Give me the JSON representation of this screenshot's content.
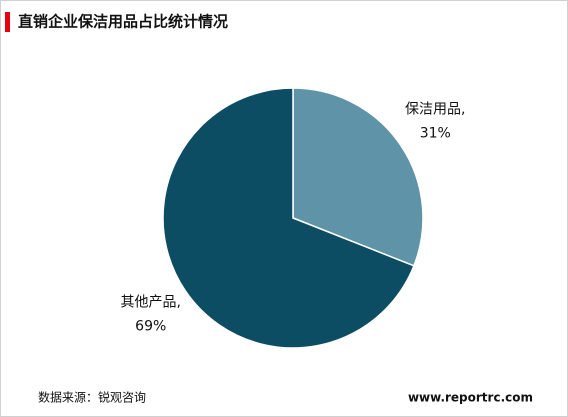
{
  "chart_data": {
    "type": "pie",
    "title": "直销企业保洁用品占比统计情况",
    "categories": [
      "保洁用品,",
      "其他产品,"
    ],
    "values": [
      31,
      69
    ],
    "value_labels": [
      "31%",
      "69%"
    ],
    "colors": [
      "#5f93a8",
      "#0d4d63"
    ],
    "source": "数据来源：锐观咨询",
    "website": "www.reportrc.com"
  }
}
